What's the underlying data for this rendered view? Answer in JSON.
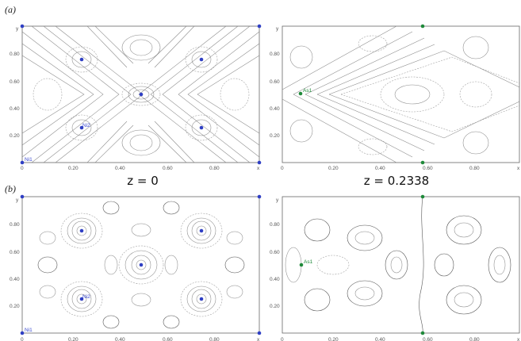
{
  "panel_labels": {
    "a": "(a)",
    "b": "(b)"
  },
  "z_labels": {
    "left": "z = 0",
    "right": "z = 0.2338"
  },
  "axes": {
    "x_label": "x",
    "y_label": "y",
    "x_ticks": [
      "0",
      "0.20",
      "0.40",
      "0.60",
      "0.80"
    ],
    "y_ticks": [
      "0.20",
      "0.40",
      "0.60",
      "0.80"
    ]
  },
  "atom_labels": {
    "ni1": "Ni1",
    "ni2": "Ni2",
    "as1": "As1"
  },
  "colors": {
    "ni": "#2f3fc4",
    "as": "#1f8a3a",
    "contour": "#8a8a8a"
  }
}
